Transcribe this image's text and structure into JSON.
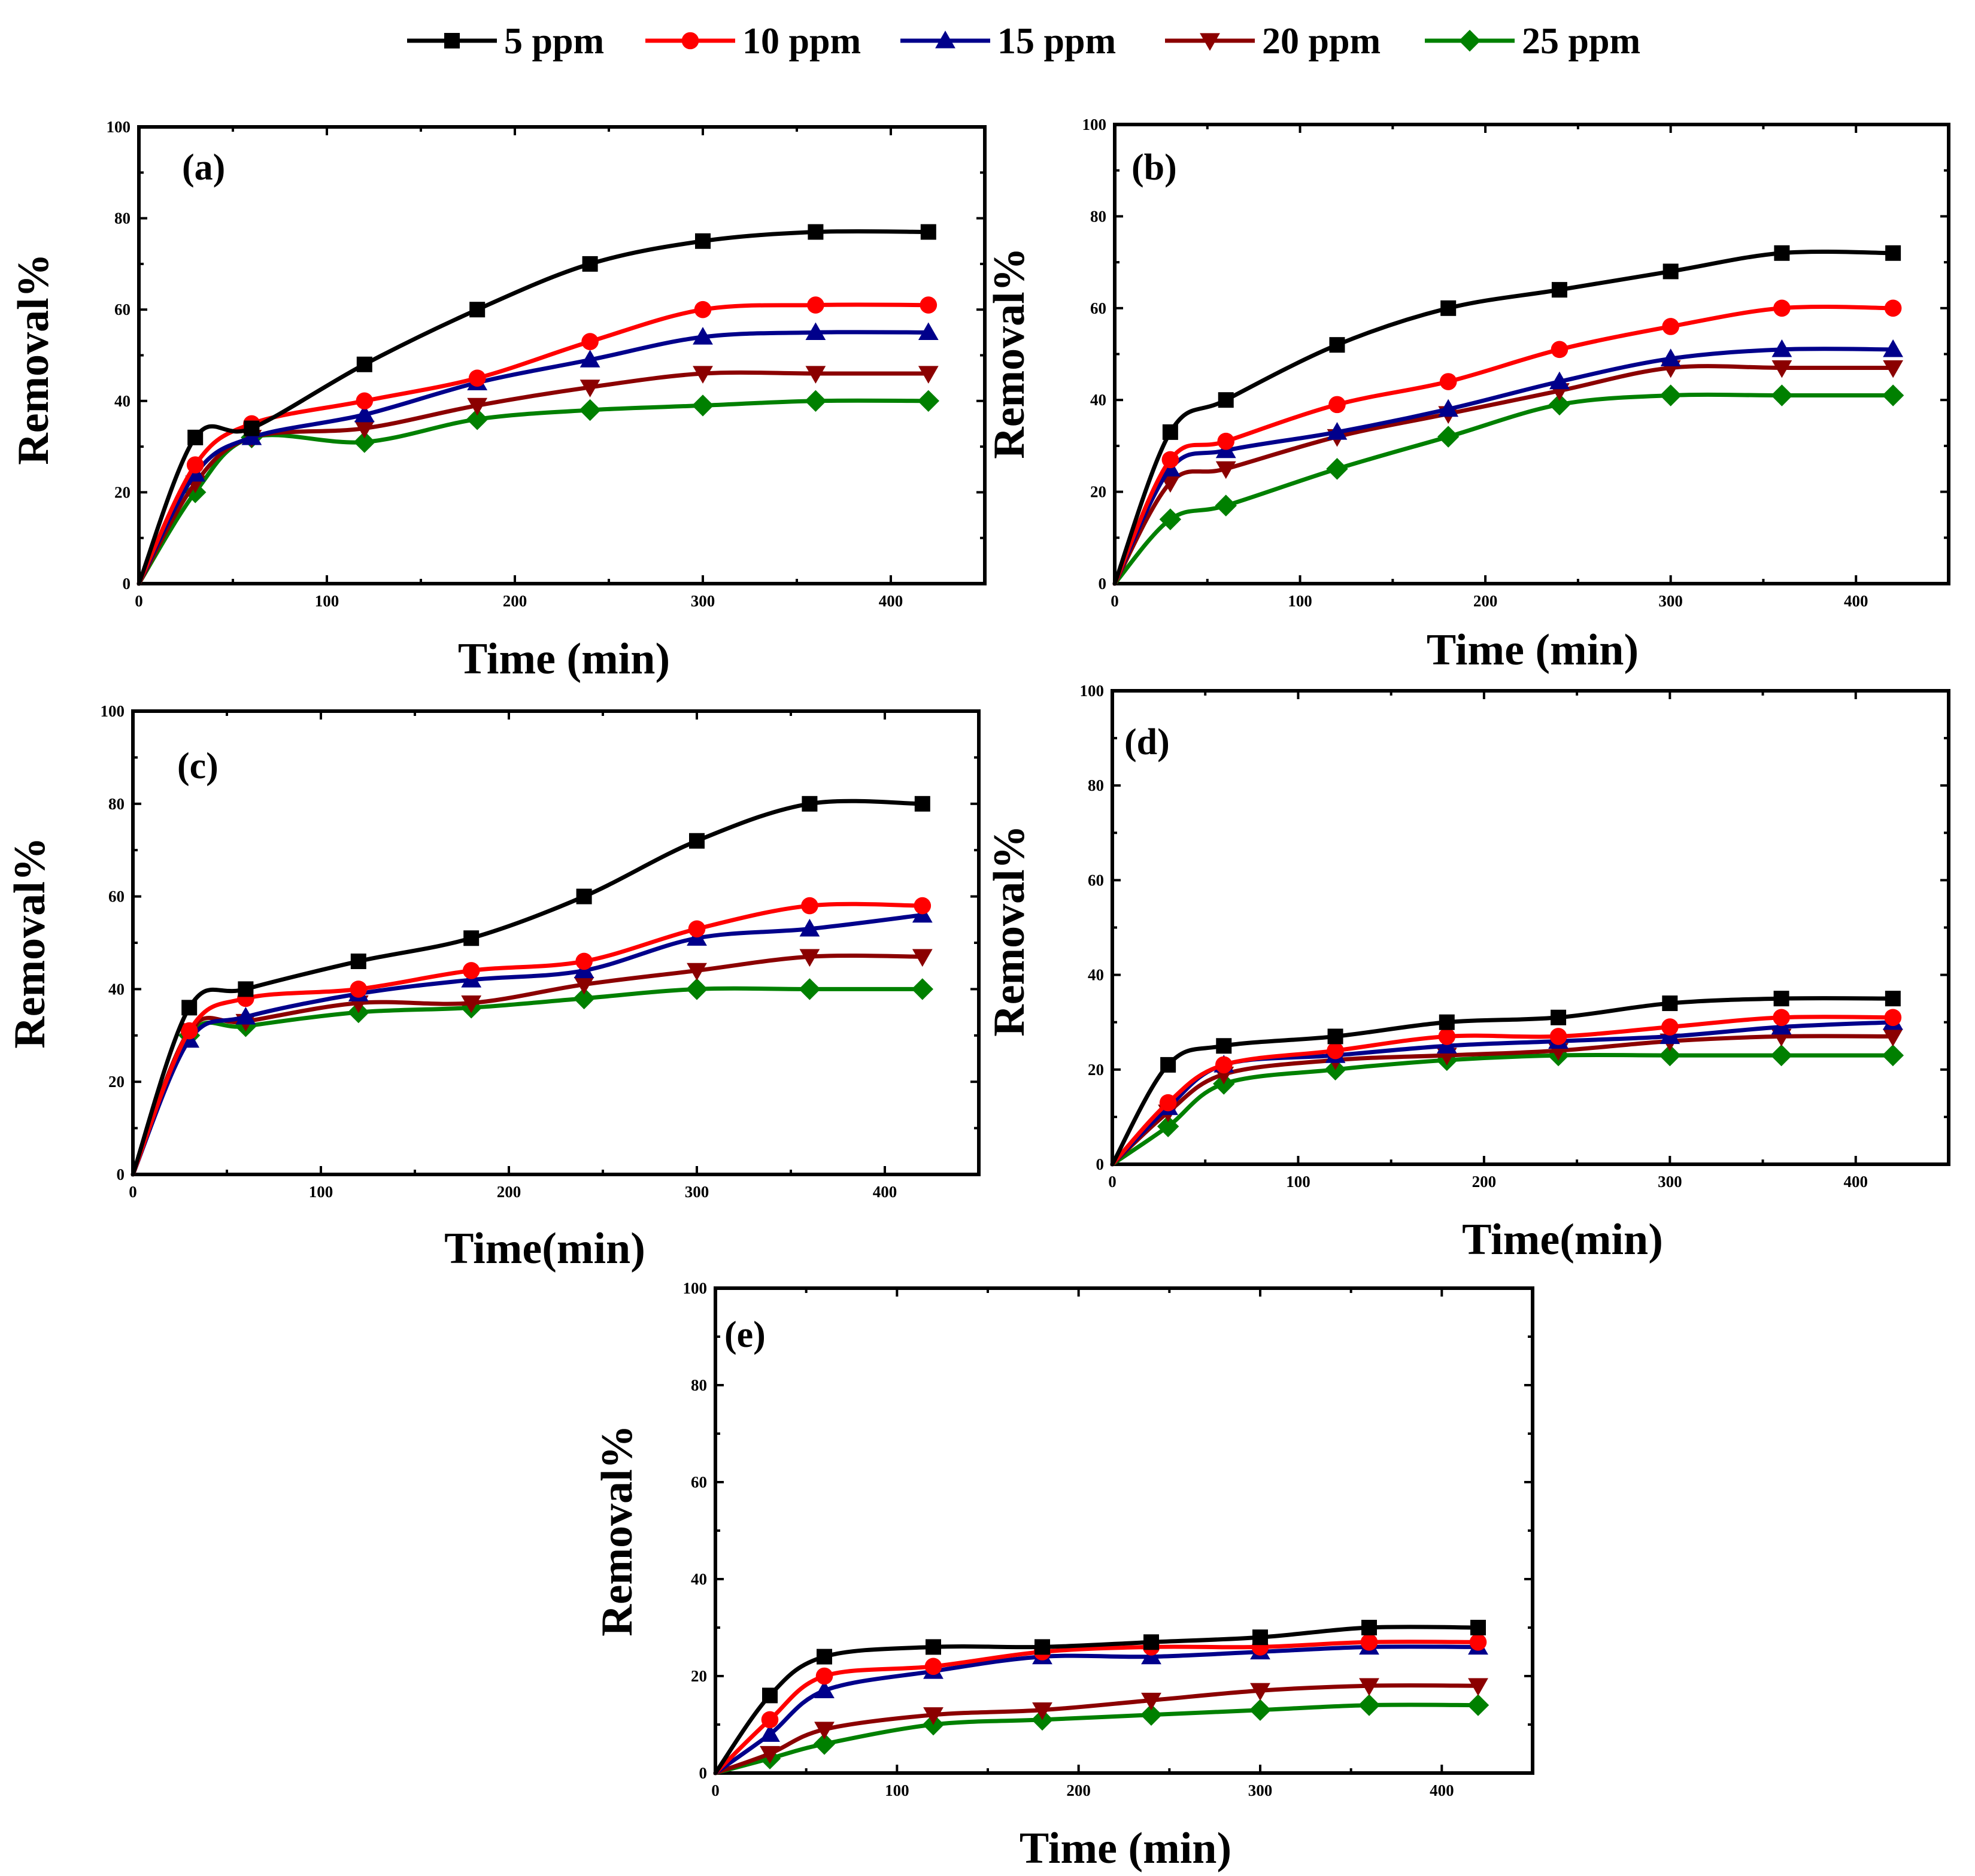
{
  "legend": [
    {
      "label": "5 ppm",
      "color": "#000000",
      "marker": "square"
    },
    {
      "label": "10 ppm",
      "color": "#ff0000",
      "marker": "circle"
    },
    {
      "label": "15 ppm",
      "color": "#00008b",
      "marker": "triangle-up"
    },
    {
      "label": "20 ppm",
      "color": "#8b0000",
      "marker": "triangle-down"
    },
    {
      "label": "25 ppm",
      "color": "#008000",
      "marker": "diamond"
    }
  ],
  "chart_data": [
    {
      "panel": "(a)",
      "type": "line",
      "xlabel": "Time (min)",
      "ylabel": "Removal%",
      "xlim": [
        0,
        450
      ],
      "ylim": [
        0,
        100
      ],
      "xticks": [
        0,
        100,
        200,
        300,
        400
      ],
      "yticks": [
        0,
        20,
        40,
        60,
        80,
        100
      ],
      "x": [
        0,
        30,
        60,
        120,
        180,
        240,
        300,
        360,
        420
      ],
      "series": [
        {
          "name": "5 ppm",
          "values": [
            0,
            32,
            34,
            48,
            60,
            70,
            75,
            77,
            77
          ]
        },
        {
          "name": "10 ppm",
          "values": [
            0,
            26,
            35,
            40,
            45,
            53,
            60,
            61,
            61
          ]
        },
        {
          "name": "15 ppm",
          "values": [
            0,
            24,
            32,
            37,
            44,
            49,
            54,
            55,
            55
          ]
        },
        {
          "name": "20 ppm",
          "values": [
            0,
            22,
            32,
            34,
            39,
            43,
            46,
            46,
            46
          ]
        },
        {
          "name": "25 ppm",
          "values": [
            0,
            20,
            32,
            31,
            36,
            38,
            39,
            40,
            40
          ]
        }
      ]
    },
    {
      "panel": "(b)",
      "type": "line",
      "xlabel": "Time (min)",
      "ylabel": "Removal%",
      "xlim": [
        0,
        450
      ],
      "ylim": [
        0,
        100
      ],
      "xticks": [
        0,
        100,
        200,
        300,
        400
      ],
      "yticks": [
        0,
        20,
        40,
        60,
        80,
        100
      ],
      "x": [
        0,
        30,
        60,
        120,
        180,
        240,
        300,
        360,
        420
      ],
      "series": [
        {
          "name": "5 ppm",
          "values": [
            0,
            33,
            40,
            52,
            60,
            64,
            68,
            72,
            72
          ]
        },
        {
          "name": "10 ppm",
          "values": [
            0,
            27,
            31,
            39,
            44,
            51,
            56,
            60,
            60
          ]
        },
        {
          "name": "15 ppm",
          "values": [
            0,
            25,
            29,
            33,
            38,
            44,
            49,
            51,
            51
          ]
        },
        {
          "name": "20 ppm",
          "values": [
            0,
            22,
            25,
            32,
            37,
            42,
            47,
            47,
            47
          ]
        },
        {
          "name": "25 ppm",
          "values": [
            0,
            14,
            17,
            25,
            32,
            39,
            41,
            41,
            41
          ]
        }
      ]
    },
    {
      "panel": "(c)",
      "type": "line",
      "xlabel": "Time(min)",
      "ylabel": "Removal%",
      "xlim": [
        0,
        450
      ],
      "ylim": [
        0,
        100
      ],
      "xticks": [
        0,
        100,
        200,
        300,
        400
      ],
      "yticks": [
        0,
        20,
        40,
        60,
        80,
        100
      ],
      "x": [
        0,
        30,
        60,
        120,
        180,
        240,
        300,
        360,
        420
      ],
      "series": [
        {
          "name": "5 ppm",
          "values": [
            0,
            36,
            40,
            46,
            51,
            60,
            72,
            80,
            80
          ]
        },
        {
          "name": "10 ppm",
          "values": [
            0,
            31,
            38,
            40,
            44,
            46,
            53,
            58,
            58
          ]
        },
        {
          "name": "15 ppm",
          "values": [
            0,
            29,
            34,
            39,
            42,
            44,
            51,
            53,
            56
          ]
        },
        {
          "name": "20 ppm",
          "values": [
            0,
            31,
            33,
            37,
            37,
            41,
            44,
            47,
            47
          ]
        },
        {
          "name": "25 ppm",
          "values": [
            0,
            30,
            32,
            35,
            36,
            38,
            40,
            40,
            40
          ]
        }
      ]
    },
    {
      "panel": "(d)",
      "type": "line",
      "xlabel": "Time(min)",
      "ylabel": "Removal%",
      "xlim": [
        0,
        450
      ],
      "ylim": [
        0,
        100
      ],
      "xticks": [
        0,
        100,
        200,
        300,
        400
      ],
      "yticks": [
        0,
        20,
        40,
        60,
        80,
        100
      ],
      "x": [
        0,
        30,
        60,
        120,
        180,
        240,
        300,
        360,
        420
      ],
      "series": [
        {
          "name": "5 ppm",
          "values": [
            0,
            21,
            25,
            27,
            30,
            31,
            34,
            35,
            35
          ]
        },
        {
          "name": "10 ppm",
          "values": [
            0,
            13,
            21,
            24,
            27,
            27,
            29,
            31,
            31
          ]
        },
        {
          "name": "15 ppm",
          "values": [
            0,
            12,
            21,
            23,
            25,
            26,
            27,
            29,
            30
          ]
        },
        {
          "name": "20 ppm",
          "values": [
            0,
            11,
            19,
            22,
            23,
            24,
            26,
            27,
            27
          ]
        },
        {
          "name": "25 ppm",
          "values": [
            0,
            8,
            17,
            20,
            22,
            23,
            23,
            23,
            23
          ]
        }
      ]
    },
    {
      "panel": "(e)",
      "type": "line",
      "xlabel": "Time (min)",
      "ylabel": "Removal%",
      "xlim": [
        0,
        450
      ],
      "ylim": [
        0,
        100
      ],
      "xticks": [
        0,
        100,
        200,
        300,
        400
      ],
      "yticks": [
        0,
        20,
        40,
        60,
        80,
        100
      ],
      "x": [
        0,
        30,
        60,
        120,
        180,
        240,
        300,
        360,
        420
      ],
      "series": [
        {
          "name": "5 ppm",
          "values": [
            0,
            16,
            24,
            26,
            26,
            27,
            28,
            30,
            30
          ]
        },
        {
          "name": "10 ppm",
          "values": [
            0,
            11,
            20,
            22,
            25,
            26,
            26,
            27,
            27
          ]
        },
        {
          "name": "15 ppm",
          "values": [
            0,
            8,
            17,
            21,
            24,
            24,
            25,
            26,
            26
          ]
        },
        {
          "name": "20 ppm",
          "values": [
            0,
            4,
            9,
            12,
            13,
            15,
            17,
            18,
            18
          ]
        },
        {
          "name": "25 ppm",
          "values": [
            0,
            3,
            6,
            10,
            11,
            12,
            13,
            14,
            14
          ]
        }
      ]
    }
  ]
}
